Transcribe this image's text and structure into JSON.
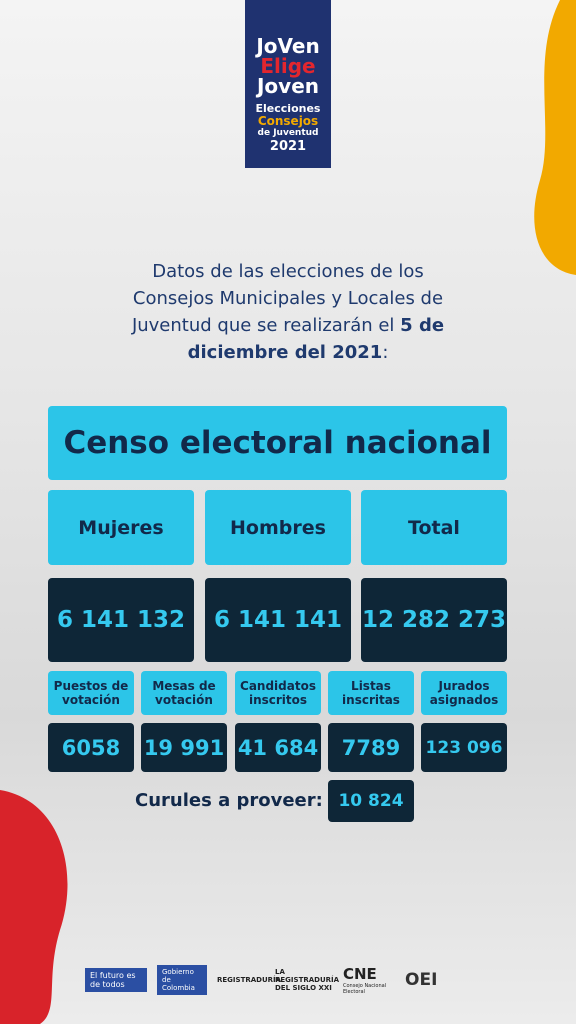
{
  "logo": {
    "line1": "JoVen",
    "line2": "Elige",
    "line3": "Joven",
    "line4": "Elecciones",
    "line5": "Consejos",
    "line6": "de Juventud",
    "year": "2021"
  },
  "intro": {
    "text": "Datos de las elecciones de los Consejos Municipales y Locales de Juventud que se realizarán el",
    "date": "5 de diciembre del 2021",
    "end": ":"
  },
  "title": "Censo electoral nacional",
  "census": [
    {
      "label": "Mujeres",
      "value": "6 141 132"
    },
    {
      "label": "Hombres",
      "value": "6 141 141"
    },
    {
      "label": "Total",
      "value": "12 282 273"
    }
  ],
  "stats": [
    {
      "label": "Puestos de votación",
      "value": "6058"
    },
    {
      "label": "Mesas de votación",
      "value": "19 991"
    },
    {
      "label": "Candidatos inscritos",
      "value": "41 684"
    },
    {
      "label": "Listas inscritas",
      "value": "7789"
    },
    {
      "label": "Jurados asignados",
      "value": "123 096"
    }
  ],
  "seats": {
    "label": "Curules a proveer:",
    "value": "10 824"
  },
  "footer": {
    "gov1": "El futuro es de todos",
    "gov2": "Gobierno de Colombia",
    "reg": "REGISTRADURÍA",
    "reg2": "LA REGISTRADURÍA DEL SIGLO XXI",
    "cne": "CNE",
    "cne2": "Consejo Nacional Electoral",
    "oei": "OEI"
  }
}
